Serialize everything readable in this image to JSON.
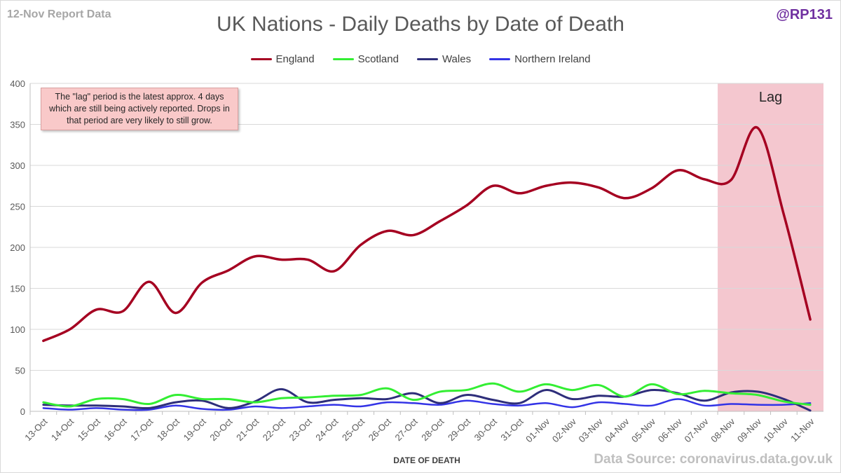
{
  "header": {
    "report_date": "12-Nov Report Data",
    "handle": "@RP131",
    "source": "Data Source: coronavirus.data.gov.uk"
  },
  "annotation": {
    "note": "The \"lag\" period is the latest approx. 4 days which are still being actively reported. Drops in that period are very likely to still grow.",
    "lag_label": "Lag"
  },
  "chart_data": {
    "type": "line",
    "title": "UK Nations - Daily Deaths by Date of Death",
    "xlabel": "DATE OF DEATH",
    "ylabel": "",
    "ylim": [
      0,
      400
    ],
    "yticks": [
      0,
      50,
      100,
      150,
      200,
      250,
      300,
      350,
      400
    ],
    "grid": true,
    "legend_position": "top-center",
    "lag_period": {
      "start": "08-Nov",
      "end": "11-Nov",
      "color": "#f4c7cf"
    },
    "categories": [
      "13-Oct",
      "14-Oct",
      "15-Oct",
      "16-Oct",
      "17-Oct",
      "18-Oct",
      "19-Oct",
      "20-Oct",
      "21-Oct",
      "22-Oct",
      "23-Oct",
      "24-Oct",
      "25-Oct",
      "26-Oct",
      "27-Oct",
      "28-Oct",
      "29-Oct",
      "30-Oct",
      "31-Oct",
      "01-Nov",
      "02-Nov",
      "03-Nov",
      "04-Nov",
      "05-Nov",
      "06-Nov",
      "07-Nov",
      "08-Nov",
      "09-Nov",
      "10-Nov",
      "11-Nov"
    ],
    "series": [
      {
        "name": "England",
        "color": "#a50021",
        "width": 3.5,
        "values": [
          86,
          100,
          124,
          122,
          158,
          120,
          157,
          172,
          189,
          185,
          185,
          171,
          203,
          220,
          215,
          232,
          251,
          275,
          266,
          275,
          279,
          273,
          260,
          272,
          294,
          283,
          282,
          346,
          240,
          112
        ]
      },
      {
        "name": "Scotland",
        "color": "#33ee33",
        "width": 3,
        "values": [
          11,
          6,
          15,
          15,
          9,
          20,
          15,
          15,
          11,
          16,
          17,
          19,
          20,
          28,
          14,
          24,
          26,
          34,
          24,
          33,
          26,
          32,
          18,
          33,
          21,
          25,
          22,
          20,
          12,
          8
        ]
      },
      {
        "name": "Wales",
        "color": "#2e2e7a",
        "width": 3,
        "values": [
          8,
          7,
          7,
          6,
          4,
          11,
          13,
          4,
          12,
          27,
          11,
          14,
          16,
          15,
          22,
          10,
          20,
          14,
          10,
          26,
          15,
          19,
          18,
          26,
          22,
          13,
          23,
          24,
          15,
          1
        ]
      },
      {
        "name": "Northern Ireland",
        "color": "#3333e6",
        "width": 2.5,
        "values": [
          4,
          2,
          4,
          2,
          2,
          7,
          3,
          2,
          6,
          4,
          6,
          8,
          6,
          11,
          10,
          8,
          13,
          9,
          7,
          10,
          5,
          11,
          9,
          7,
          15,
          7,
          9,
          8,
          8,
          10
        ]
      }
    ]
  }
}
